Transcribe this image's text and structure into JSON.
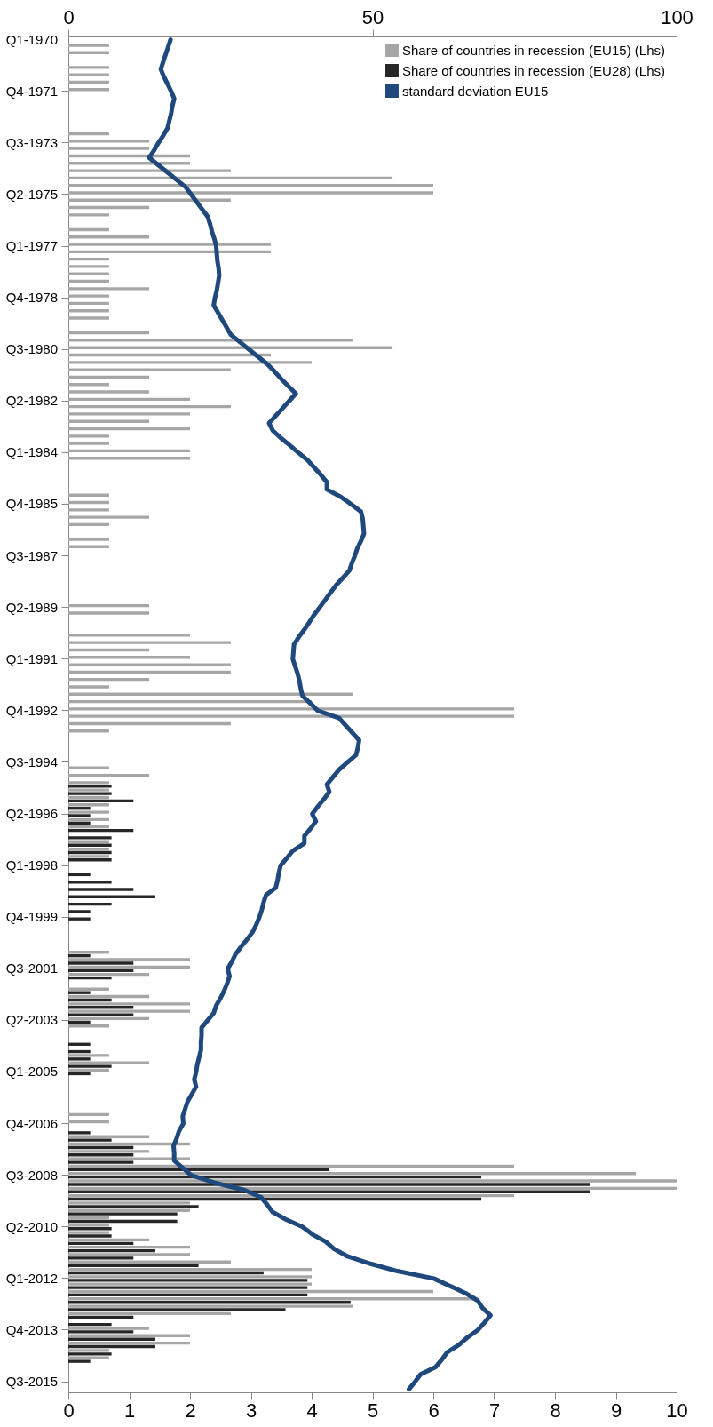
{
  "chart_data": {
    "type": "bar",
    "orientation": "horizontal",
    "legend": "top right",
    "categories": [
      "Q1-1970",
      null,
      null,
      null,
      null,
      null,
      null,
      "Q4-1971",
      null,
      null,
      null,
      null,
      null,
      null,
      "Q3-1973",
      null,
      null,
      null,
      null,
      null,
      null,
      "Q2-1975",
      null,
      null,
      null,
      null,
      null,
      null,
      "Q1-1977",
      null,
      null,
      null,
      null,
      null,
      null,
      "Q4-1978",
      null,
      null,
      null,
      null,
      null,
      null,
      "Q3-1980",
      null,
      null,
      null,
      null,
      null,
      null,
      "Q2-1982",
      null,
      null,
      null,
      null,
      null,
      null,
      "Q1-1984",
      null,
      null,
      null,
      null,
      null,
      null,
      "Q4-1985",
      null,
      null,
      null,
      null,
      null,
      null,
      "Q3-1987",
      null,
      null,
      null,
      null,
      null,
      null,
      "Q2-1989",
      null,
      null,
      null,
      null,
      null,
      null,
      "Q1-1991",
      null,
      null,
      null,
      null,
      null,
      null,
      "Q4-1992",
      null,
      null,
      null,
      null,
      null,
      null,
      "Q3-1994",
      null,
      null,
      null,
      null,
      null,
      null,
      "Q2-1996",
      null,
      null,
      null,
      null,
      null,
      null,
      "Q1-1998",
      null,
      null,
      null,
      null,
      null,
      null,
      "Q4-1999",
      null,
      null,
      null,
      null,
      null,
      null,
      "Q3-2001",
      null,
      null,
      null,
      null,
      null,
      null,
      "Q2-2003",
      null,
      null,
      null,
      null,
      null,
      null,
      "Q1-2005",
      null,
      null,
      null,
      null,
      null,
      null,
      "Q4-2006",
      null,
      null,
      null,
      null,
      null,
      null,
      "Q3-2008",
      null,
      null,
      null,
      null,
      null,
      null,
      "Q2-2010",
      null,
      null,
      null,
      null,
      null,
      null,
      "Q1-2012",
      null,
      null,
      null,
      null,
      null,
      null,
      "Q4-2013",
      null,
      null,
      null,
      null,
      null,
      null,
      "Q3-2015",
      null
    ],
    "xlim": [
      0,
      10
    ],
    "xticks": [
      0,
      1,
      2,
      3,
      4,
      5,
      6,
      7,
      8,
      9,
      10
    ],
    "x2lim": [
      0,
      100
    ],
    "x2ticks": [
      0,
      50,
      100
    ],
    "series": [
      {
        "name": "Share of countries in recession  (EU15) (Lhs)",
        "type": "bar",
        "axis": "x2",
        "color": "#a6a6a6",
        "values": [
          0,
          6.7,
          6.7,
          0,
          6.7,
          6.7,
          6.7,
          6.7,
          0,
          0,
          0,
          0,
          0,
          6.7,
          13.3,
          13.3,
          20,
          20,
          26.7,
          53.3,
          60,
          60,
          26.7,
          13.3,
          6.7,
          0,
          6.7,
          13.3,
          33.3,
          33.3,
          6.7,
          6.7,
          6.7,
          6.7,
          13.3,
          6.7,
          6.7,
          6.7,
          6.7,
          0,
          13.3,
          46.7,
          53.3,
          33.3,
          40,
          26.7,
          13.3,
          6.7,
          13.3,
          20,
          26.7,
          20,
          13.3,
          20,
          6.7,
          6.7,
          20,
          20,
          0,
          0,
          0,
          0,
          6.7,
          6.7,
          6.7,
          13.3,
          6.7,
          0,
          6.7,
          6.7,
          0,
          0,
          0,
          0,
          0,
          0,
          0,
          13.3,
          13.3,
          0,
          0,
          20,
          26.7,
          13.3,
          20,
          26.7,
          26.7,
          13.3,
          6.7,
          46.7,
          40,
          73.3,
          73.3,
          26.7,
          6.7,
          0,
          0,
          0,
          0,
          6.7,
          13.3,
          6.7,
          6.7,
          6.7,
          6.7,
          6.7,
          6.7,
          6.7,
          0,
          6.7,
          6.7,
          6.7,
          0,
          0,
          0,
          0,
          0,
          0,
          0,
          0,
          0,
          0,
          0,
          0,
          6.7,
          20,
          20,
          13.3,
          0,
          6.7,
          13.3,
          20,
          20,
          13.3,
          6.7,
          0,
          0,
          0,
          6.7,
          13.3,
          6.7,
          0,
          0,
          0,
          0,
          0,
          6.7,
          6.7,
          0,
          13.3,
          20,
          13.3,
          20,
          73.3,
          93.3,
          100,
          100,
          73.3,
          20,
          20,
          6.7,
          6.7,
          6.7,
          13.3,
          20,
          20,
          26.7,
          40,
          40,
          40,
          60,
          66.7,
          46.7,
          26.7,
          0,
          13.3,
          20,
          20,
          6.7,
          6.7,
          0,
          0,
          0,
          0
        ]
      },
      {
        "name": "Share of countries in recession  (EU28) (Lhs)",
        "type": "bar",
        "axis": "x2",
        "color": "#262626",
        "values": [
          null,
          null,
          null,
          null,
          null,
          null,
          null,
          null,
          null,
          null,
          null,
          null,
          null,
          null,
          null,
          null,
          null,
          null,
          null,
          null,
          null,
          null,
          null,
          null,
          null,
          null,
          null,
          null,
          null,
          null,
          null,
          null,
          null,
          null,
          null,
          null,
          null,
          null,
          null,
          null,
          null,
          null,
          null,
          null,
          null,
          null,
          null,
          null,
          null,
          null,
          null,
          null,
          null,
          null,
          null,
          null,
          null,
          null,
          null,
          null,
          null,
          null,
          null,
          null,
          null,
          null,
          null,
          null,
          null,
          null,
          null,
          null,
          null,
          null,
          null,
          null,
          null,
          null,
          null,
          null,
          null,
          null,
          null,
          null,
          null,
          null,
          null,
          null,
          null,
          null,
          null,
          null,
          null,
          null,
          null,
          null,
          null,
          null,
          null,
          null,
          0,
          7.1,
          7.1,
          10.7,
          3.6,
          3.6,
          3.6,
          10.7,
          7.1,
          7.1,
          7.1,
          7.1,
          0,
          3.6,
          7.1,
          10.7,
          14.3,
          7.1,
          3.6,
          3.6,
          0,
          0,
          0,
          0,
          3.6,
          10.7,
          10.7,
          7.1,
          0,
          3.6,
          7.1,
          10.7,
          10.7,
          3.6,
          0,
          0,
          3.6,
          3.6,
          3.6,
          7.1,
          3.6,
          0,
          0,
          0,
          0,
          0,
          0,
          0,
          3.6,
          7.1,
          10.7,
          10.7,
          10.7,
          42.9,
          67.9,
          85.7,
          85.7,
          67.9,
          21.4,
          17.9,
          17.9,
          7.1,
          7.1,
          10.7,
          14.3,
          10.7,
          21.4,
          32.1,
          39.3,
          39.3,
          39.3,
          46.4,
          35.7,
          10.7,
          7.1,
          10.7,
          14.3,
          14.3,
          7.1,
          3.6,
          0,
          0,
          0,
          0
        ]
      },
      {
        "name": "standard deviation EU15",
        "type": "line",
        "color": "#1f497d",
        "values": [
          1.68,
          1.64,
          1.6,
          1.56,
          1.52,
          1.57,
          1.63,
          1.69,
          1.74,
          1.71,
          1.69,
          1.66,
          1.63,
          1.56,
          1.48,
          1.41,
          1.33,
          1.48,
          1.63,
          1.78,
          1.93,
          2.02,
          2.11,
          2.2,
          2.29,
          2.33,
          2.36,
          2.4,
          2.43,
          2.44,
          2.45,
          2.47,
          2.48,
          2.46,
          2.44,
          2.41,
          2.39,
          2.46,
          2.53,
          2.6,
          2.67,
          2.82,
          2.97,
          3.12,
          3.27,
          3.39,
          3.5,
          3.62,
          3.74,
          3.63,
          3.52,
          3.41,
          3.3,
          3.36,
          3.49,
          3.64,
          3.78,
          3.93,
          4.04,
          4.15,
          4.25,
          4.25,
          4.48,
          4.65,
          4.81,
          4.84,
          4.85,
          4.86,
          4.81,
          4.75,
          4.71,
          4.66,
          4.62,
          4.51,
          4.4,
          4.31,
          4.22,
          4.13,
          4.04,
          3.96,
          3.88,
          3.79,
          3.71,
          3.7,
          3.69,
          3.73,
          3.77,
          3.8,
          3.82,
          3.85,
          3.98,
          4.1,
          4.45,
          4.56,
          4.67,
          4.78,
          4.76,
          4.73,
          4.59,
          4.45,
          4.35,
          4.25,
          4.29,
          4.2,
          4.1,
          4.01,
          4.07,
          3.98,
          3.88,
          3.88,
          3.69,
          3.59,
          3.49,
          3.46,
          3.44,
          3.41,
          3.25,
          3.21,
          3.18,
          3.14,
          3.09,
          3.03,
          2.94,
          2.84,
          2.75,
          2.69,
          2.62,
          2.65,
          2.61,
          2.56,
          2.5,
          2.43,
          2.39,
          2.29,
          2.19,
          2.19,
          2.18,
          2.18,
          2.15,
          2.12,
          2.1,
          2.07,
          2.1,
          2.03,
          1.96,
          1.92,
          1.88,
          1.89,
          1.82,
          1.78,
          1.73,
          1.74,
          1.74,
          1.88,
          2.02,
          2.4,
          2.89,
          3.17,
          3.27,
          3.36,
          3.58,
          3.85,
          4.01,
          4.23,
          4.37,
          4.59,
          4.97,
          5.41,
          6.01,
          6.27,
          6.53,
          6.73,
          6.81,
          6.94,
          6.84,
          6.73,
          6.56,
          6.42,
          6.23,
          6.14,
          6.04,
          5.79,
          5.7,
          5.6
        ]
      }
    ]
  }
}
